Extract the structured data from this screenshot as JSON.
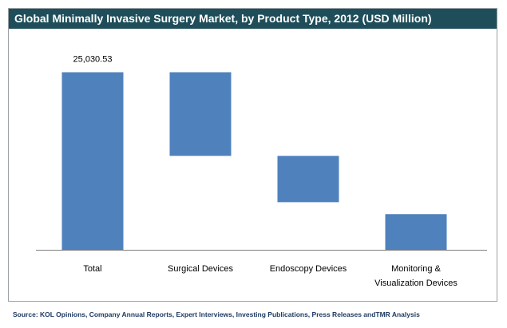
{
  "title": "Global Minimally Invasive Surgery Market, by Product Type, 2012 (USD Million)",
  "source": "Source: KOL Opinions, Company Annual Reports, Expert Interviews, Investing Publications, Press Releases andTMR Analysis",
  "colors": {
    "title_bg": "#1f4e5a",
    "bar": "#4f81bd",
    "axis": "#7f7f7f",
    "source_text": "#1f3b64"
  },
  "chart_data": {
    "type": "bar",
    "subtype": "waterfall",
    "categories": [
      "Total",
      "Surgical Devices",
      "Endoscopy Devices",
      "Monitoring & Visualization Devices"
    ],
    "category_label_lines": [
      [
        "Total"
      ],
      [
        "Surgical Devices"
      ],
      [
        "Endoscopy Devices"
      ],
      [
        "Monitoring &",
        "Visualization  Devices"
      ]
    ],
    "values": [
      25030.53,
      11790,
      6530,
      5030
    ],
    "bar_ranges": [
      [
        0,
        25030.53
      ],
      [
        13240,
        25030.53
      ],
      [
        6710,
        13240
      ],
      [
        0,
        5030
      ]
    ],
    "data_labels": [
      "25,030.53",
      "",
      "",
      ""
    ],
    "ylim": [
      0,
      27000
    ],
    "grid": false,
    "legend": "none"
  }
}
